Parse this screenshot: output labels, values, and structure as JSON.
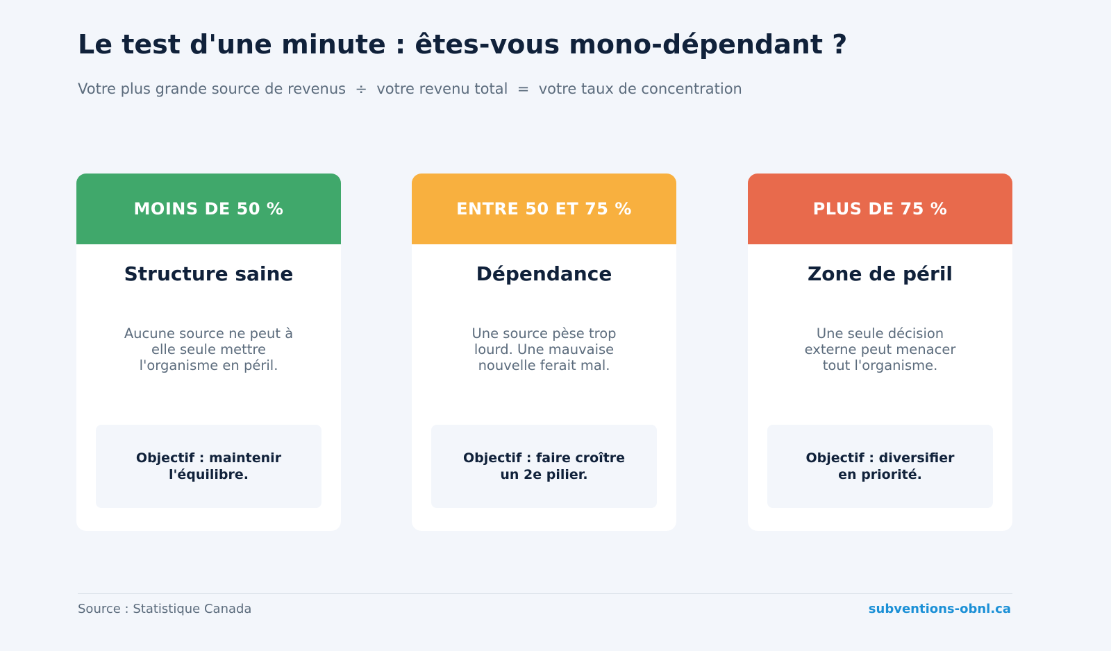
{
  "header": {
    "title": "Le test d'une minute : êtes-vous mono-dépendant ?",
    "subtitle": "Votre plus grande source de revenus  ÷  votre revenu total  =  votre taux de concentration"
  },
  "cards": [
    {
      "label": "MOINS DE 50 %",
      "title": "Structure saine",
      "description": "Aucune source ne peut à elle seule mettre l'organisme en péril.",
      "objective": "Objectif : maintenir l'équilibre."
    },
    {
      "label": "ENTRE 50 ET 75 %",
      "title": "Dépendance",
      "description": "Une source pèse trop lourd. Une mauvaise nouvelle ferait mal.",
      "objective": "Objectif : faire croître un 2e pilier."
    },
    {
      "label": "PLUS DE 75 %",
      "title": "Zone de péril",
      "description": "Une seule décision externe peut menacer tout l'organisme.",
      "objective": "Objectif : diversifier en priorité."
    }
  ],
  "footer": {
    "source": "Source : Statistique Canada",
    "link": "subventions-obnl.ca"
  }
}
